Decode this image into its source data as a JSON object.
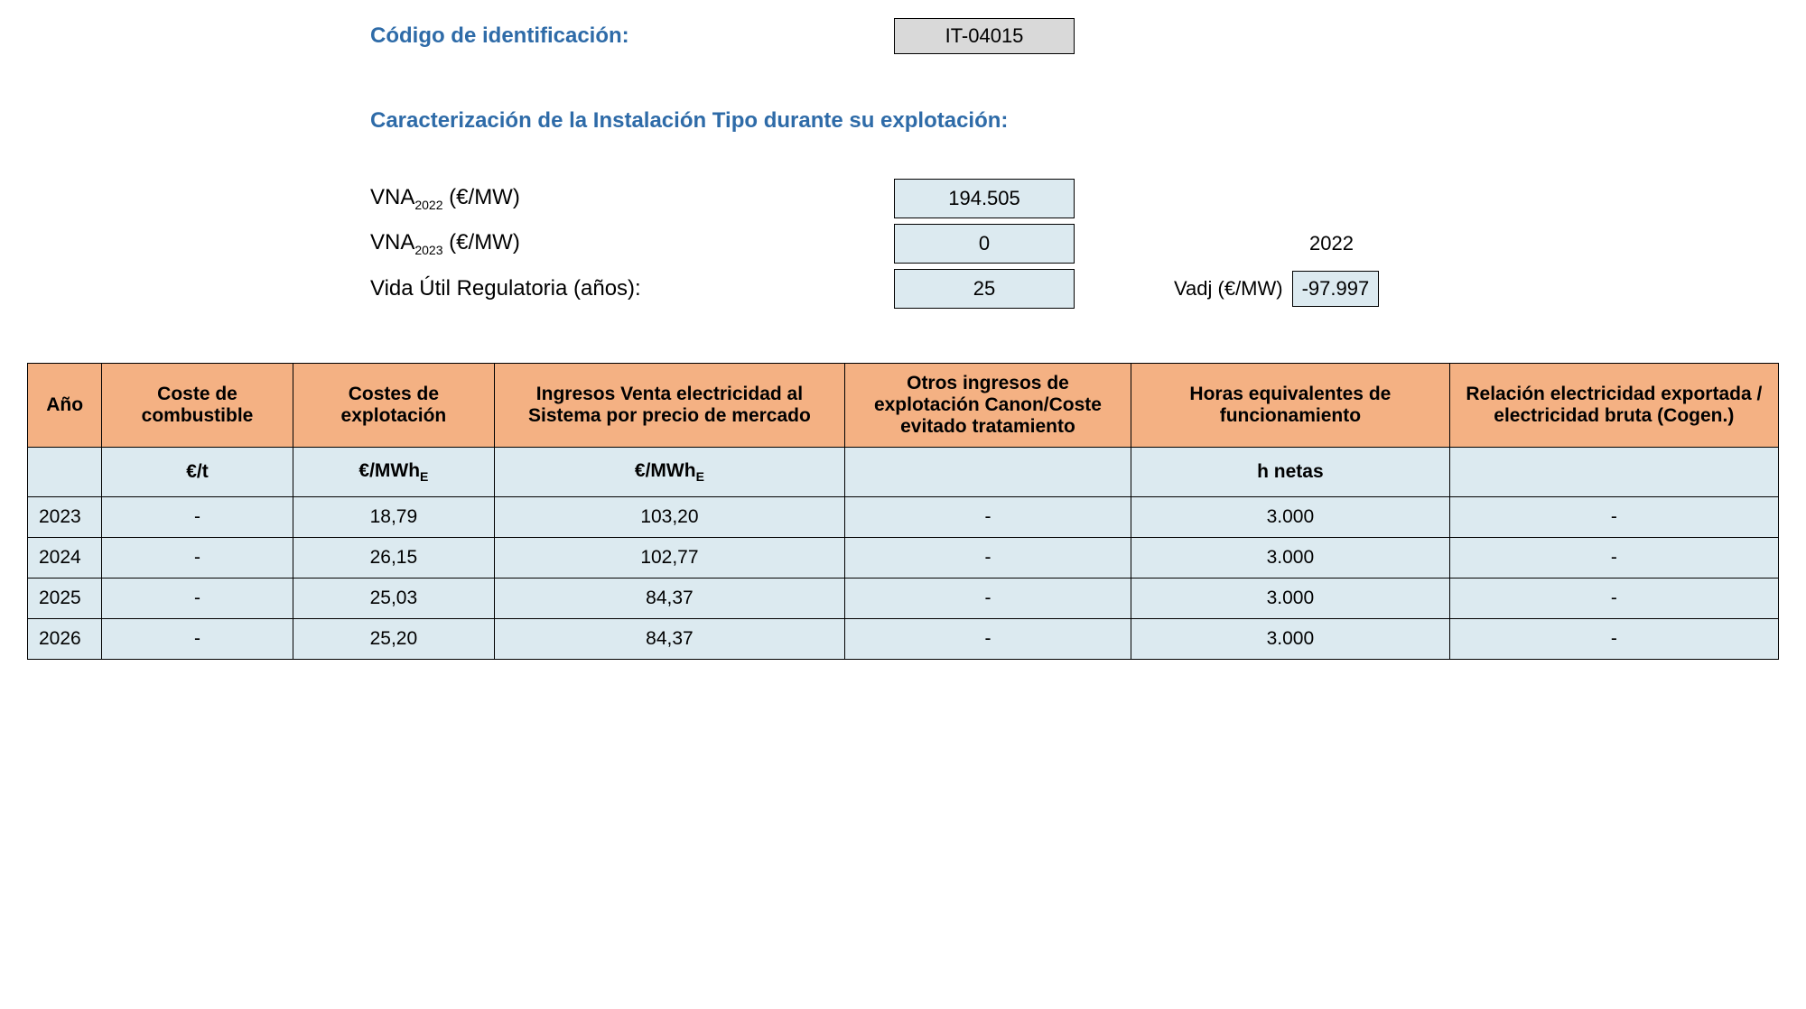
{
  "header": {
    "code_label": "Código de identificación:",
    "code_value": "IT-04015"
  },
  "section_title": "Caracterización de la Instalación Tipo durante su explotación:",
  "params": {
    "vna2022_label_prefix": "VNA",
    "vna2022_sub": "2022",
    "vna_unit": " (€/MW)",
    "vna2022_value": "194.505",
    "vna2023_label_prefix": "VNA",
    "vna2023_sub": "2023",
    "vna2023_value": "0",
    "year_right": "2022",
    "vida_label": "Vida Útil Regulatoria (años):",
    "vida_value": "25",
    "vadj_label": "Vadj (€/MW)",
    "vadj_value": "-97.997"
  },
  "table": {
    "headers": {
      "ano": "Año",
      "combustible": "Coste de combustible",
      "explotacion": "Costes de explotación",
      "ingresos": "Ingresos Venta electricidad al Sistema por precio de mercado",
      "otros": "Otros ingresos de explotación Canon/Coste evitado tratamiento",
      "horas": "Horas equivalentes de funcionamiento",
      "relacion": "Relación electricidad exportada / electricidad bruta (Cogen.)"
    },
    "units": {
      "ano": "",
      "combustible": "€/t",
      "explotacion_prefix": "€/MWh",
      "explotacion_sub": "E",
      "ingresos_prefix": "€/MWh",
      "ingresos_sub": "E",
      "otros": "",
      "horas": "h netas",
      "relacion": ""
    },
    "rows": [
      {
        "ano": "2023",
        "combustible": "-",
        "explotacion": "18,79",
        "ingresos": "103,20",
        "otros": "-",
        "horas": "3.000",
        "relacion": "-"
      },
      {
        "ano": "2024",
        "combustible": "-",
        "explotacion": "26,15",
        "ingresos": "102,77",
        "otros": "-",
        "horas": "3.000",
        "relacion": "-"
      },
      {
        "ano": "2025",
        "combustible": "-",
        "explotacion": "25,03",
        "ingresos": "84,37",
        "otros": "-",
        "horas": "3.000",
        "relacion": "-"
      },
      {
        "ano": "2026",
        "combustible": "-",
        "explotacion": "25,20",
        "ingresos": "84,37",
        "otros": "-",
        "horas": "3.000",
        "relacion": "-"
      }
    ]
  },
  "colors": {
    "header_bg": "#f4b183",
    "cell_bg": "#dceaf0",
    "blue_text": "#2e6ba8",
    "code_bg": "#d9d9d9",
    "border": "#000000",
    "page_bg": "#ffffff"
  }
}
